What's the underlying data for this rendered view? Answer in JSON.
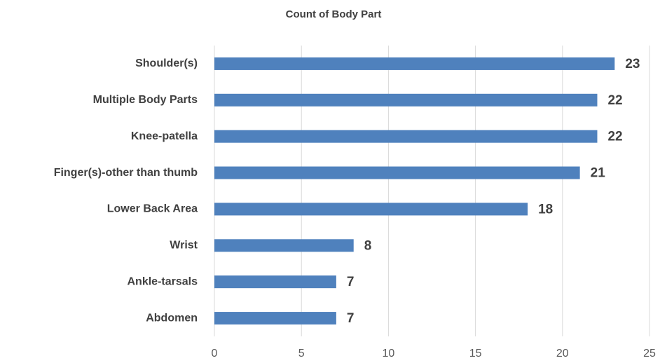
{
  "chart_data": {
    "type": "bar",
    "orientation": "horizontal",
    "title": "Count of Body Part",
    "categories": [
      "Shoulder(s)",
      "Multiple Body Parts",
      "Knee-patella",
      "Finger(s)-other than thumb",
      "Lower Back Area",
      "Wrist",
      "Ankle-tarsals",
      "Abdomen"
    ],
    "values": [
      23,
      22,
      22,
      21,
      18,
      8,
      7,
      7
    ],
    "color": "#4f81bd",
    "xlim": [
      0,
      25
    ],
    "xticks": [
      0,
      5,
      10,
      15,
      20,
      25
    ],
    "grid": true
  }
}
